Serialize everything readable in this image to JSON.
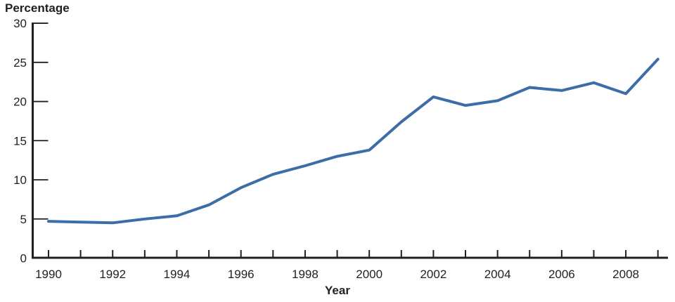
{
  "chart_data": {
    "type": "line",
    "title": "",
    "ylabel": "Percentage",
    "xlabel": "Year",
    "x": [
      1990,
      1991,
      1992,
      1993,
      1994,
      1995,
      1996,
      1997,
      1998,
      1999,
      2000,
      2001,
      2002,
      2003,
      2004,
      2005,
      2006,
      2007,
      2008,
      2009
    ],
    "values": [
      4.7,
      4.6,
      4.5,
      5.0,
      5.4,
      6.8,
      9.0,
      10.7,
      11.8,
      13.0,
      13.8,
      17.4,
      20.6,
      19.5,
      20.1,
      21.8,
      21.4,
      22.4,
      21.0,
      25.4
    ],
    "ylim": [
      0,
      30
    ],
    "yticks": [
      0,
      5,
      10,
      15,
      20,
      25,
      30
    ],
    "xtick_label_step": 2,
    "xtick_labels": [
      "1990",
      "1992",
      "1994",
      "1996",
      "1998",
      "2000",
      "2002",
      "2004",
      "2006",
      "2008"
    ],
    "grid": false,
    "legend": null,
    "line_color": "#3C6DA6",
    "axis_color": "#231F20",
    "text_color": "#231F20"
  }
}
